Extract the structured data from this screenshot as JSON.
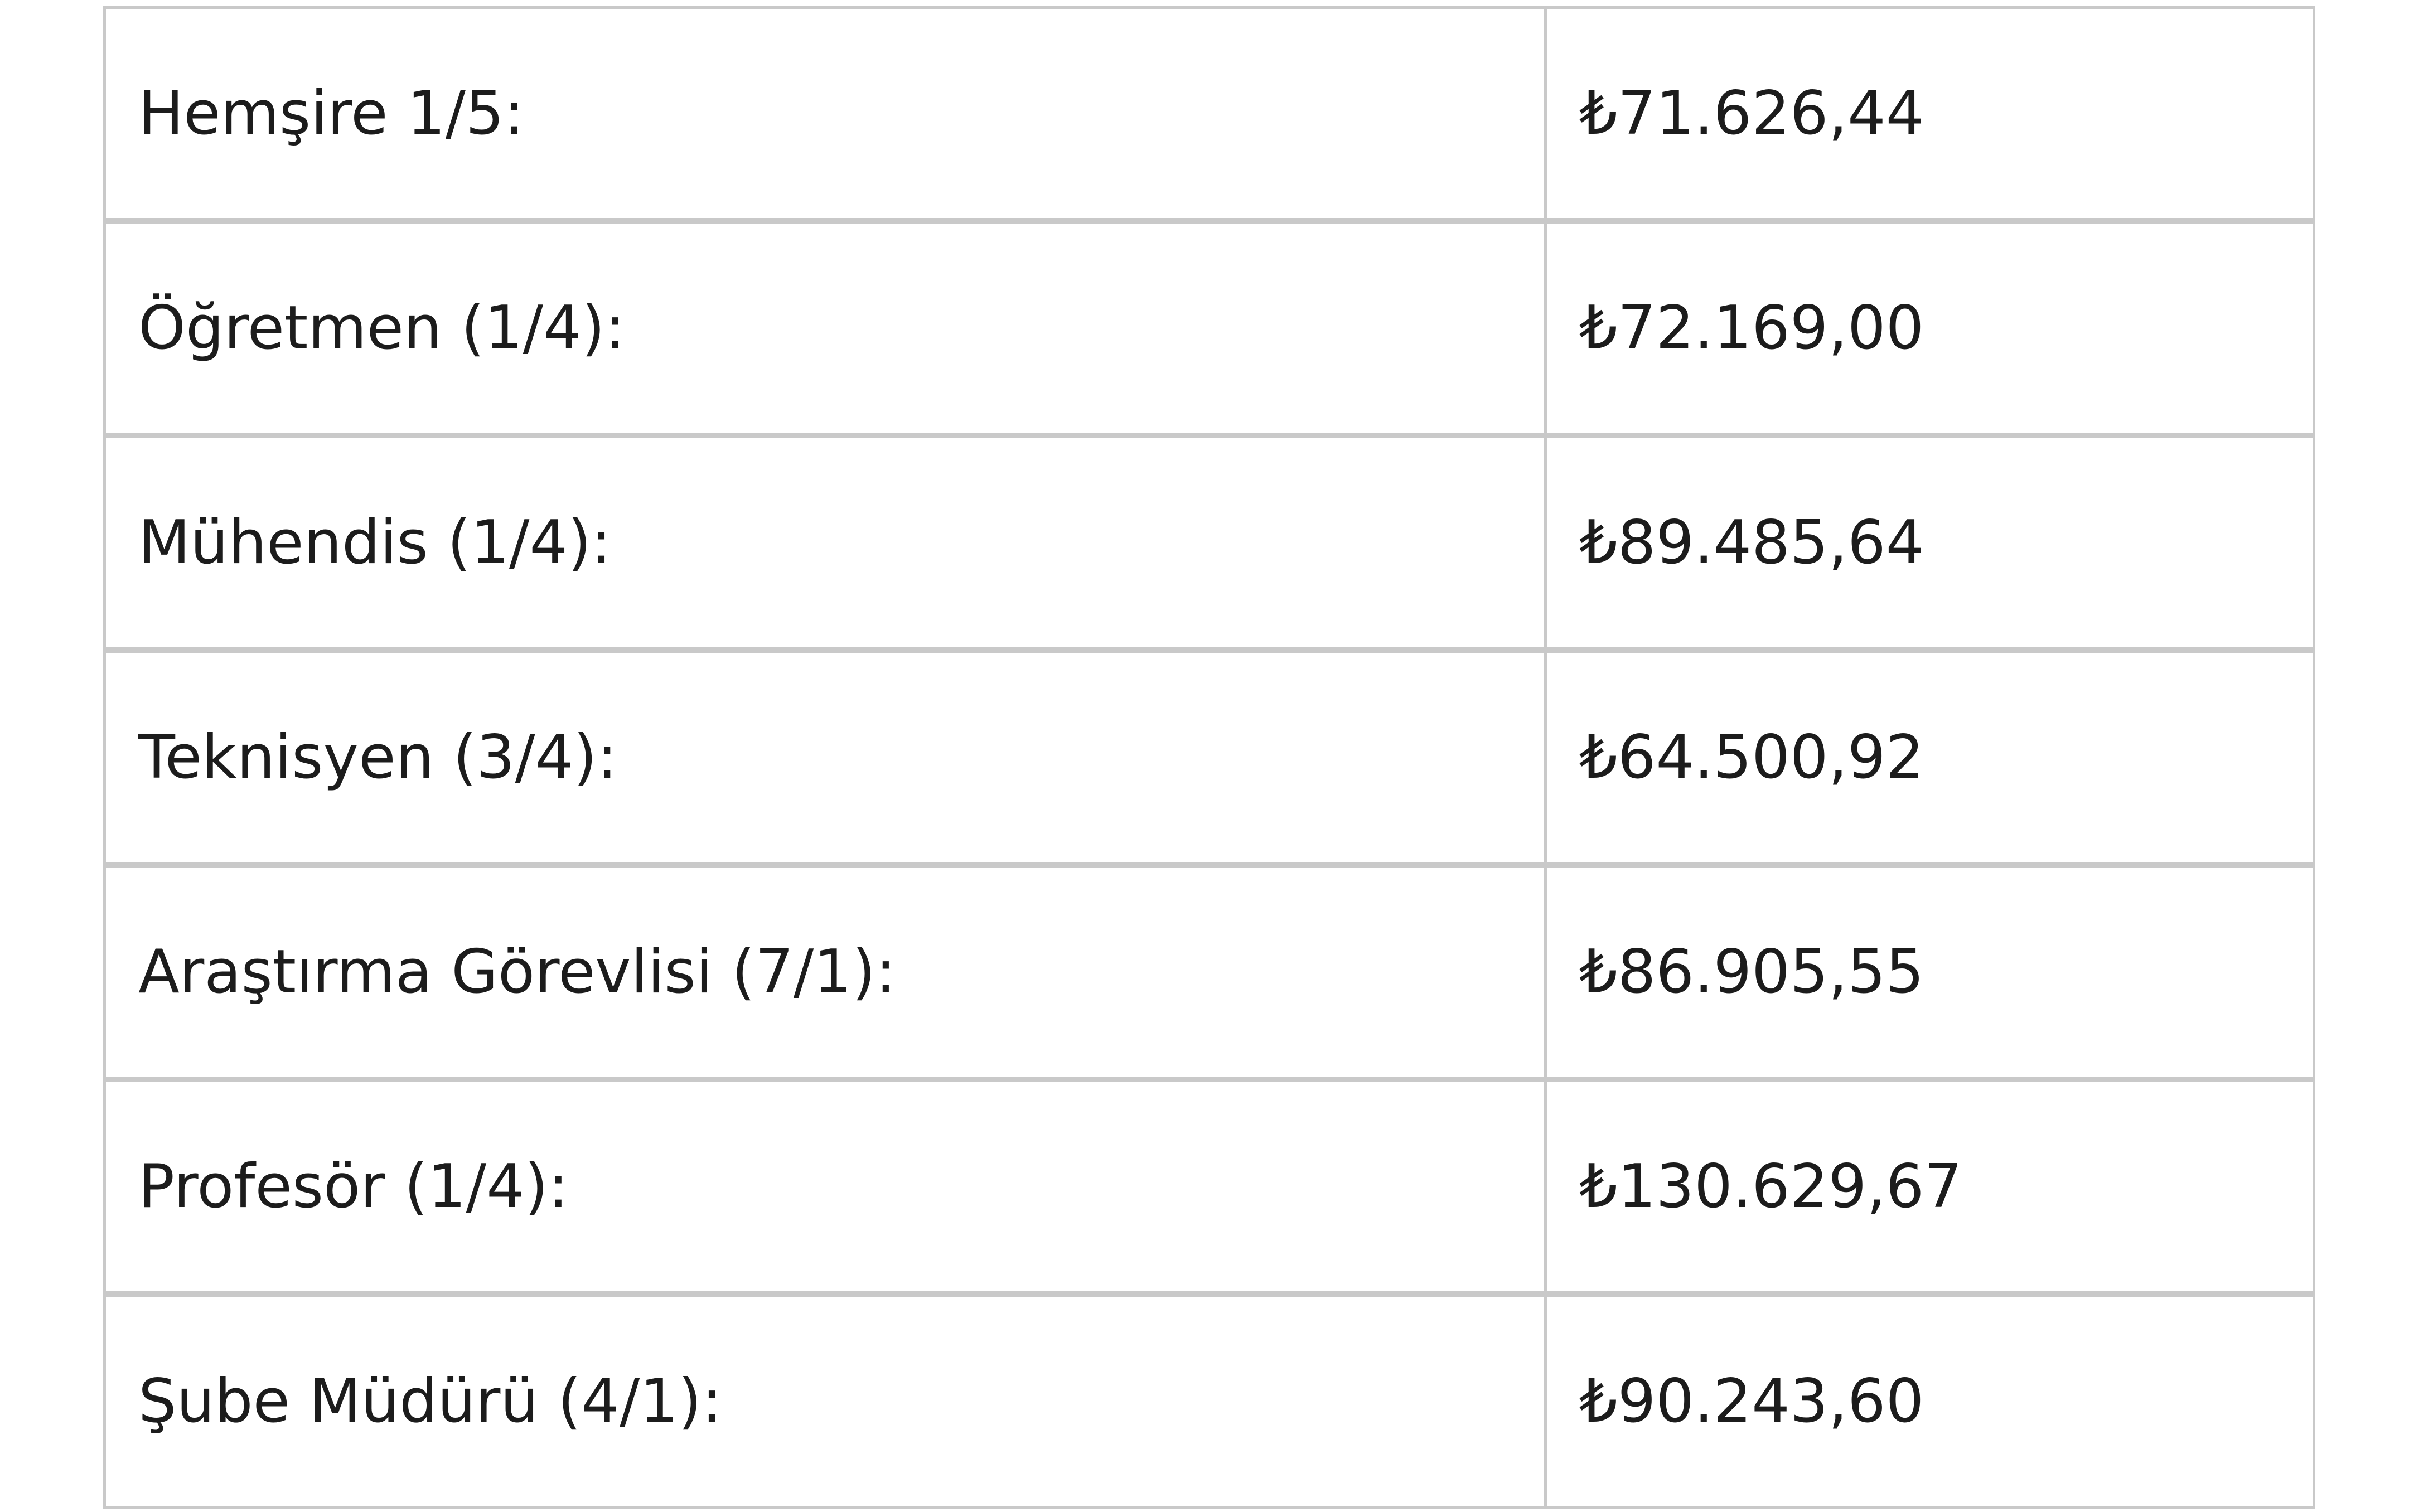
{
  "table": {
    "rows": [
      [
        "Hemşire 1/5:",
        "₺71.626,44"
      ],
      [
        "Öğretmen (1/4):",
        "₺72.169,00"
      ],
      [
        "Mühendis (1/4):",
        "₺89.485,64"
      ],
      [
        "Teknisyen (3/4):",
        "₺64.500,92"
      ],
      [
        "Araştırma Görevlisi (7/1):",
        "₺86.905,55"
      ],
      [
        "Profesör (1/4):",
        "₺130.629,67"
      ],
      [
        "Şube Müdürü (4/1):",
        "₺90.243,60"
      ]
    ]
  }
}
